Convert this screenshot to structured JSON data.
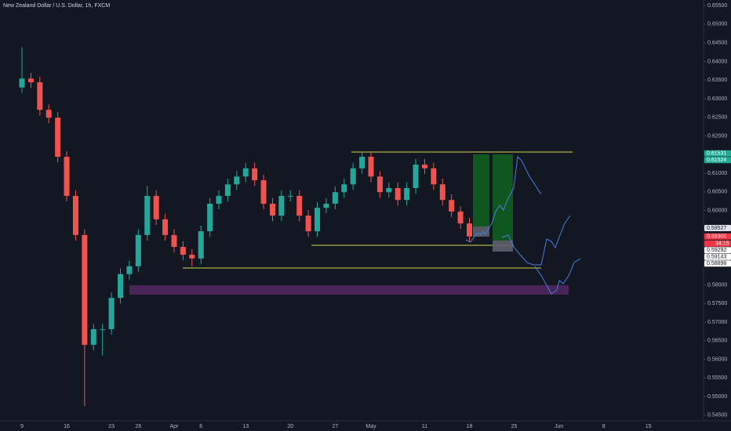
{
  "chart_data": {
    "type": "candlestick",
    "title": "New Zealand Dollar / U.S. Dollar, 1h, FXCM",
    "categories": [
      "9",
      null,
      null,
      null,
      null,
      "16",
      null,
      null,
      null,
      null,
      "23",
      null,
      null,
      "26",
      null,
      null,
      null,
      "Apr",
      null,
      null,
      "6",
      null,
      null,
      null,
      null,
      "13",
      null,
      null,
      null,
      null,
      "20",
      null,
      null,
      null,
      null,
      "27",
      null,
      null,
      null,
      "May",
      null,
      null,
      null,
      null,
      null,
      "11",
      null,
      null,
      null,
      null,
      "18",
      null,
      null,
      null,
      null,
      "25",
      null,
      null,
      null,
      null,
      "Jun",
      null,
      null,
      null,
      null,
      "8",
      null,
      null,
      null,
      null,
      "15"
    ],
    "open": [
      0.633,
      0.6354,
      0.6344,
      0.627,
      0.6249,
      0.6144,
      0.6039,
      0.5934,
      0.5639,
      0.5681,
      0.5681,
      0.5765,
      0.5829,
      0.585,
      0.5934,
      0.6039,
      0.5976,
      0.5934,
      0.5902,
      0.5881,
      0.5871,
      0.5944,
      0.6018,
      0.6039,
      0.607,
      0.6091,
      0.6113,
      0.6081,
      0.6018,
      0.5986,
      0.6039,
      0.6039,
      0.5986,
      0.5944,
      0.6007,
      0.6018,
      0.6049,
      0.607,
      0.6113,
      0.6144,
      0.6091,
      0.6049,
      0.606,
      0.6028,
      0.606,
      0.6123,
      0.6113,
      0.607,
      0.6028,
      0.5997,
      0.5965,
      null,
      null,
      null,
      null,
      null,
      null,
      null,
      null,
      null,
      null,
      null,
      null,
      null,
      null,
      null,
      null,
      null,
      null,
      null,
      null
    ],
    "high": [
      0.6439,
      0.6369,
      0.6359,
      0.6285,
      0.6264,
      0.6159,
      0.6054,
      0.5949,
      0.5696,
      0.5696,
      0.578,
      0.5844,
      0.5865,
      0.5949,
      0.6066,
      0.6054,
      0.5991,
      0.5949,
      0.5917,
      0.5896,
      0.5959,
      0.6033,
      0.6054,
      0.6085,
      0.6106,
      0.6128,
      0.6128,
      0.6096,
      0.6033,
      0.6054,
      0.6054,
      0.6054,
      0.6001,
      0.6022,
      0.6033,
      0.6064,
      0.6085,
      0.6128,
      0.6158,
      0.6159,
      0.6106,
      0.6075,
      0.6075,
      0.6075,
      0.6138,
      0.6138,
      0.6128,
      0.6085,
      0.6043,
      0.6012,
      0.598,
      null,
      null,
      null,
      null,
      null,
      null,
      null,
      null,
      null,
      null,
      null,
      null,
      null,
      null,
      null,
      null,
      null,
      null,
      null,
      null
    ],
    "low": [
      0.6315,
      0.6329,
      0.6255,
      0.6234,
      0.6129,
      0.6024,
      0.5919,
      0.5475,
      0.5624,
      0.561,
      0.5666,
      0.575,
      0.5814,
      0.5835,
      0.5919,
      0.5961,
      0.5919,
      0.5887,
      0.5866,
      0.585,
      0.5856,
      0.5929,
      0.6003,
      0.6024,
      0.6055,
      0.6076,
      0.6066,
      0.6003,
      0.5971,
      0.5971,
      0.6024,
      0.5971,
      0.5929,
      0.5929,
      0.5992,
      0.6003,
      0.6034,
      0.6055,
      0.6098,
      0.6076,
      0.6034,
      0.6034,
      0.6013,
      0.6013,
      0.6045,
      0.6098,
      0.6055,
      0.6013,
      0.5982,
      0.595,
      0.5915,
      null,
      null,
      null,
      null,
      null,
      null,
      null,
      null,
      null,
      null,
      null,
      null,
      null,
      null,
      null,
      null,
      null,
      null,
      null,
      null
    ],
    "close": [
      0.6354,
      0.6344,
      0.627,
      0.6249,
      0.6144,
      0.6039,
      0.5934,
      0.5639,
      0.5681,
      0.5681,
      0.5765,
      0.5829,
      0.585,
      0.5934,
      0.6039,
      0.5976,
      0.5934,
      0.5902,
      0.5881,
      0.5871,
      0.5944,
      0.6018,
      0.6039,
      0.607,
      0.6091,
      0.6113,
      0.6081,
      0.6018,
      0.5986,
      0.6039,
      0.6039,
      0.5986,
      0.5944,
      0.6007,
      0.6018,
      0.6049,
      0.607,
      0.6113,
      0.6144,
      0.6091,
      0.6049,
      0.606,
      0.6028,
      0.606,
      0.6123,
      0.6113,
      0.607,
      0.6028,
      0.5997,
      0.5965,
      0.593,
      null,
      null,
      null,
      null,
      null,
      null,
      null,
      null,
      null,
      null,
      null,
      null,
      null,
      null,
      null,
      null,
      null,
      null,
      null,
      null
    ],
    "up_color": "#26a69a",
    "down_color": "#ef5350",
    "ylim": [
      0.5435,
      0.6565
    ],
    "yticks": [
      {
        "value": 0.655,
        "label": "0.65500"
      },
      {
        "value": 0.65,
        "label": "0.65000"
      },
      {
        "value": 0.645,
        "label": "0.64500"
      },
      {
        "value": 0.64,
        "label": "0.64000"
      },
      {
        "value": 0.635,
        "label": "0.63500"
      },
      {
        "value": 0.63,
        "label": "0.63000"
      },
      {
        "value": 0.625,
        "label": "0.62500"
      },
      {
        "value": 0.62,
        "label": "0.62000"
      },
      {
        "value": 0.61,
        "label": "0.61000"
      },
      {
        "value": 0.605,
        "label": "0.60500"
      },
      {
        "value": 0.6,
        "label": "0.60000"
      },
      {
        "value": 0.58,
        "label": "0.58000"
      },
      {
        "value": 0.575,
        "label": "0.57500"
      },
      {
        "value": 0.57,
        "label": "0.57000"
      },
      {
        "value": 0.565,
        "label": "0.56500"
      },
      {
        "value": 0.56,
        "label": "0.56000"
      },
      {
        "value": 0.555,
        "label": "0.55500"
      },
      {
        "value": 0.55,
        "label": "0.55000"
      },
      {
        "value": 0.545,
        "label": "0.54500"
      }
    ],
    "price_tags": [
      {
        "value": 0.61531,
        "label": "0.61531",
        "color": "#22ab94",
        "text_color": "#ffffff"
      },
      {
        "value": 0.61524,
        "label": "0.61524",
        "color": "#22ab94",
        "text_color": "#ffffff"
      },
      {
        "value": 0.59527,
        "label": "0.59527",
        "color": "#e0e3eb",
        "text_color": "#131722"
      },
      {
        "value": 0.593,
        "label": "0.59300",
        "color": "#f23645",
        "text_color": "#ffffff"
      },
      {
        "value": 0.59292,
        "label": "0.59292",
        "color": "#ffffff",
        "text_color": "#131722"
      },
      {
        "value": 0.59143,
        "label": "0.59143",
        "color": "#ffffff",
        "text_color": "#131722"
      },
      {
        "value": 0.58898,
        "label": "0.58898",
        "color": "#ffffff",
        "text_color": "#131722"
      }
    ],
    "countdown": "34:15"
  }
}
